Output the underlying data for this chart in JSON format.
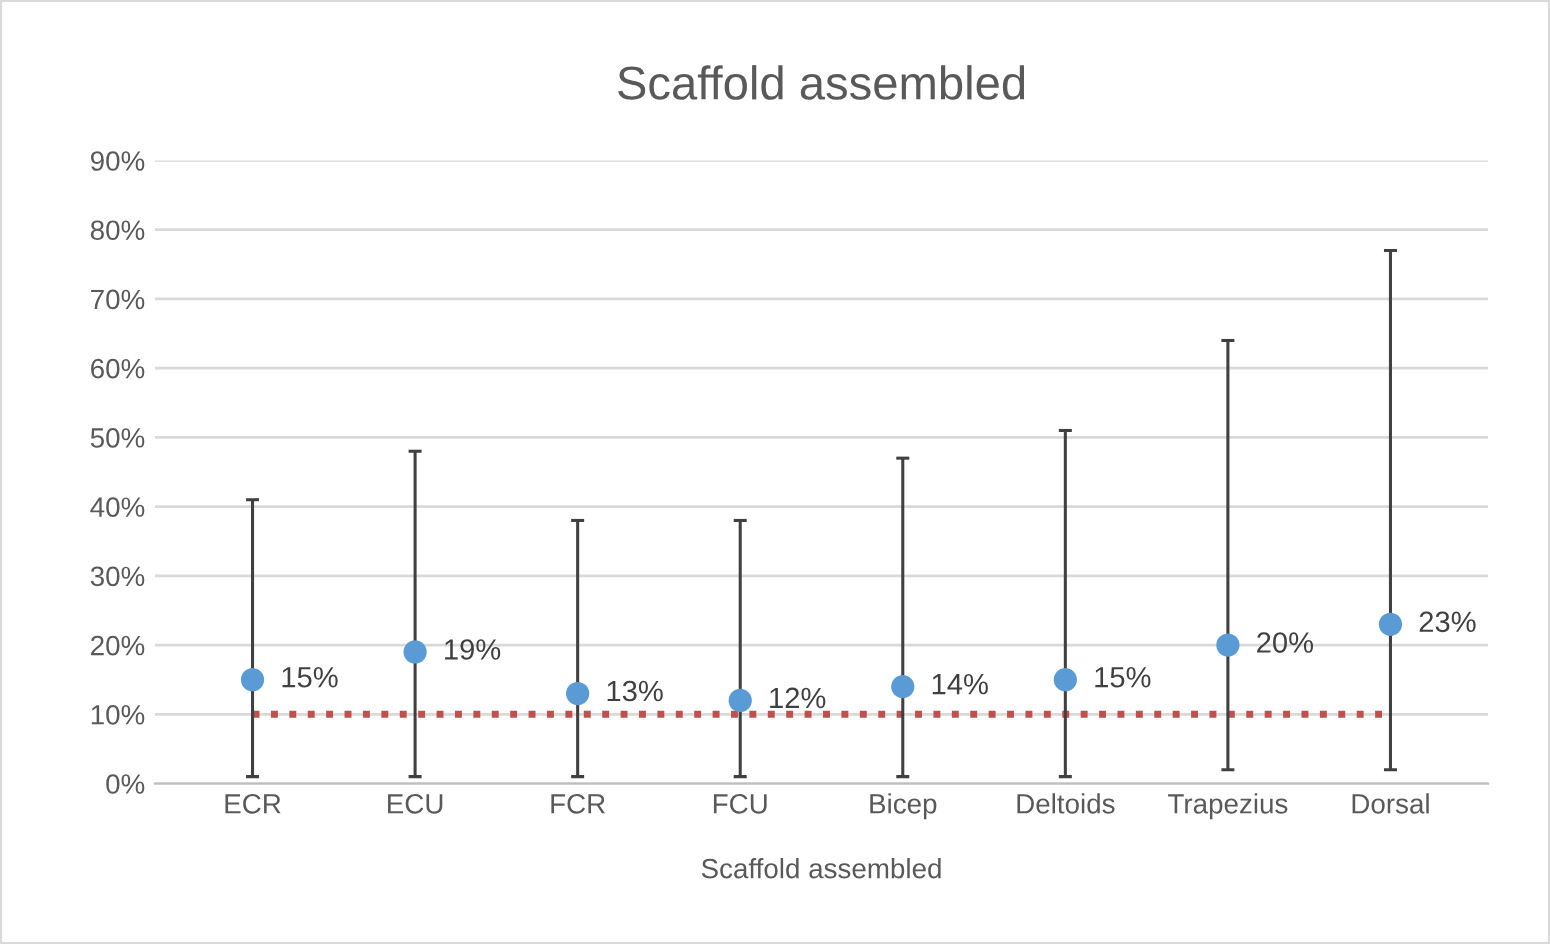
{
  "chart_data": {
    "type": "scatter",
    "title": "Scaffold assembled",
    "xlabel": "Scaffold assembled",
    "categories": [
      "ECR",
      "ECU",
      "FCR",
      "FCU",
      "Bicep",
      "Deltoids",
      "Trapezius",
      "Dorsal"
    ],
    "series": [
      {
        "color": "#5b9bd5",
        "values": [
          15,
          19,
          13,
          12,
          14,
          15,
          20,
          23
        ],
        "errors": [
          [
            1,
            41
          ],
          [
            1,
            48
          ],
          [
            1,
            38
          ],
          [
            1,
            38
          ],
          [
            1,
            47
          ],
          [
            1,
            51
          ],
          [
            2,
            64
          ],
          [
            2,
            77
          ]
        ],
        "value_labels": [
          "15%",
          "19%",
          "13%",
          "12%",
          "14%",
          "15%",
          "20%",
          "23%"
        ]
      }
    ],
    "ylim": [
      0,
      90
    ],
    "yticks": [
      {
        "value": 0,
        "label": "0%"
      },
      {
        "value": 10,
        "label": "10%"
      },
      {
        "value": 20,
        "label": "20%"
      },
      {
        "value": 30,
        "label": "30%"
      },
      {
        "value": 40,
        "label": "40%"
      },
      {
        "value": 50,
        "label": "50%"
      },
      {
        "value": 60,
        "label": "60%"
      },
      {
        "value": 70,
        "label": "70%"
      },
      {
        "value": 80,
        "label": "80%"
      },
      {
        "value": 90,
        "label": "90%"
      }
    ],
    "ref_lines": [
      {
        "axis": "y",
        "value": 10,
        "color": "#c0504d",
        "line_style": "dotted"
      }
    ],
    "grid": "y",
    "marker": "circle",
    "legend": false
  }
}
